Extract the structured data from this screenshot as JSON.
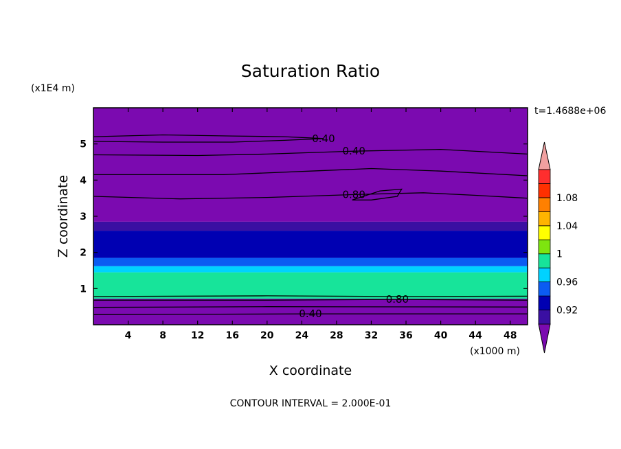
{
  "chart_data": {
    "type": "heatmap",
    "title": "Saturation Ratio",
    "xlabel": "X coordinate",
    "ylabel": "Z coordinate",
    "x_unit": "(x1000 m)",
    "y_unit": "(x1E4 m)",
    "time_label": "t=1.4688e+06",
    "footer": "CONTOUR INTERVAL = 2.000E-01",
    "xlim": [
      0,
      50
    ],
    "ylim": [
      0,
      6
    ],
    "x_ticks": [
      "4",
      "8",
      "12",
      "16",
      "20",
      "24",
      "28",
      "32",
      "36",
      "40",
      "44",
      "48"
    ],
    "y_ticks": [
      "1",
      "2",
      "3",
      "4",
      "5"
    ],
    "colorbar": {
      "labels": [
        "0.92",
        "0.96",
        "1",
        "1.04",
        "1.08"
      ],
      "levels": [
        0.92,
        0.94,
        0.96,
        0.98,
        1.0,
        1.02,
        1.04,
        1.06,
        1.08,
        1.1
      ],
      "colors": [
        "#7b0ab0",
        "#3a0fa2",
        "#0000b2",
        "#0b5cf2",
        "#00d2ff",
        "#17e49a",
        "#7ee50f",
        "#ffff00",
        "#ffb400",
        "#ff8000",
        "#ff3000",
        "#ff2e2e",
        "#f0a0a0"
      ]
    },
    "bands": [
      {
        "z": [
          0.0,
          0.72
        ],
        "color": "#7b0ab0"
      },
      {
        "z": [
          0.72,
          1.45
        ],
        "color": "#17e49a"
      },
      {
        "z": [
          1.45,
          1.62
        ],
        "color": "#00d2ff"
      },
      {
        "z": [
          1.62,
          1.85
        ],
        "color": "#0b5cf2"
      },
      {
        "z": [
          1.85,
          2.6
        ],
        "color": "#0000b2"
      },
      {
        "z": [
          2.6,
          2.85
        ],
        "color": "#3a0fa2"
      },
      {
        "z": [
          2.85,
          6.0
        ],
        "color": "#7b0ab0"
      }
    ],
    "contours": [
      {
        "label": "0.40",
        "points": [
          [
            0,
            5.2
          ],
          [
            8,
            5.25
          ],
          [
            16,
            5.22
          ],
          [
            22,
            5.2
          ],
          [
            26.5,
            5.15
          ],
          [
            22,
            5.1
          ],
          [
            16,
            5.05
          ],
          [
            8,
            5.05
          ],
          [
            0,
            5.07
          ]
        ]
      },
      {
        "label": "0.40",
        "points": [
          [
            0,
            4.7
          ],
          [
            12,
            4.68
          ],
          [
            20,
            4.72
          ],
          [
            30,
            4.8
          ],
          [
            40,
            4.85
          ],
          [
            50,
            4.72
          ]
        ]
      },
      {
        "label": "",
        "points": [
          [
            0,
            4.15
          ],
          [
            15,
            4.15
          ],
          [
            25,
            4.25
          ],
          [
            32,
            4.32
          ],
          [
            40,
            4.25
          ],
          [
            50,
            4.12
          ]
        ]
      },
      {
        "label": "0.80",
        "points": [
          [
            0,
            3.55
          ],
          [
            10,
            3.48
          ],
          [
            20,
            3.52
          ],
          [
            30,
            3.6
          ],
          [
            38,
            3.65
          ],
          [
            44,
            3.58
          ],
          [
            50,
            3.5
          ]
        ]
      },
      {
        "label": "",
        "points": [
          [
            29.8,
            3.45
          ],
          [
            33,
            3.7
          ],
          [
            35.5,
            3.75
          ],
          [
            35,
            3.55
          ],
          [
            32,
            3.45
          ],
          [
            29.8,
            3.45
          ]
        ]
      },
      {
        "label": "0.80",
        "points": [
          [
            0,
            0.68
          ],
          [
            20,
            0.68
          ],
          [
            35,
            0.7
          ],
          [
            50,
            0.68
          ]
        ]
      },
      {
        "label": "",
        "points": [
          [
            0,
            0.78
          ],
          [
            20,
            0.8
          ],
          [
            35,
            0.78
          ],
          [
            50,
            0.79
          ]
        ]
      },
      {
        "label": "",
        "points": [
          [
            0,
            0.48
          ],
          [
            20,
            0.5
          ],
          [
            50,
            0.49
          ]
        ]
      },
      {
        "label": "0.40",
        "points": [
          [
            0,
            0.28
          ],
          [
            25,
            0.3
          ],
          [
            50,
            0.3
          ]
        ]
      }
    ]
  }
}
